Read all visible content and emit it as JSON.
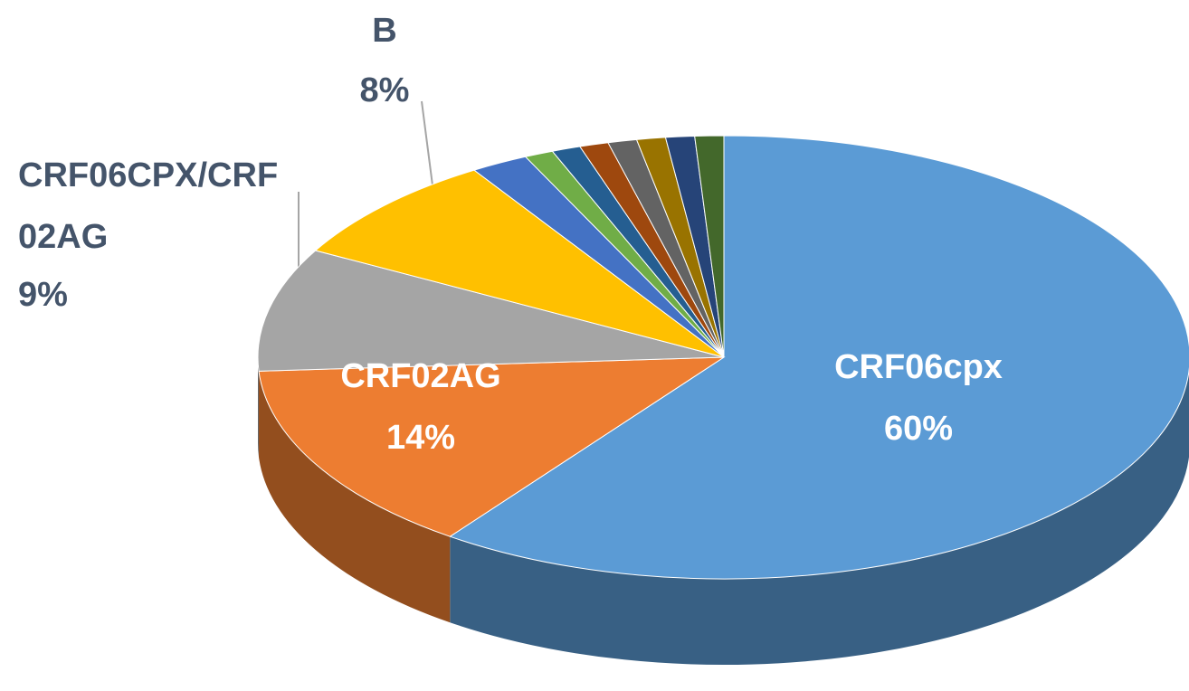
{
  "chart_data": {
    "type": "pie",
    "categories": [
      "CRF06cpx",
      "CRF02AG",
      "CRF06CPX/CRF02AG",
      "B",
      null,
      null,
      null,
      null,
      null,
      null,
      null,
      null
    ],
    "values": [
      60,
      14,
      9,
      8,
      2,
      1,
      1,
      1,
      1,
      1,
      1,
      1
    ],
    "value_labels": [
      "60%",
      "14%",
      "9%",
      "8%",
      null,
      null,
      null,
      null,
      null,
      null,
      null,
      null
    ],
    "colors": [
      "#5b9bd5",
      "#ed7d31",
      "#a5a5a5",
      "#ffc000",
      "#4472c4",
      "#70ad47",
      "#255e91",
      "#9e480e",
      "#636363",
      "#997300",
      "#264478",
      "#43682b"
    ]
  }
}
